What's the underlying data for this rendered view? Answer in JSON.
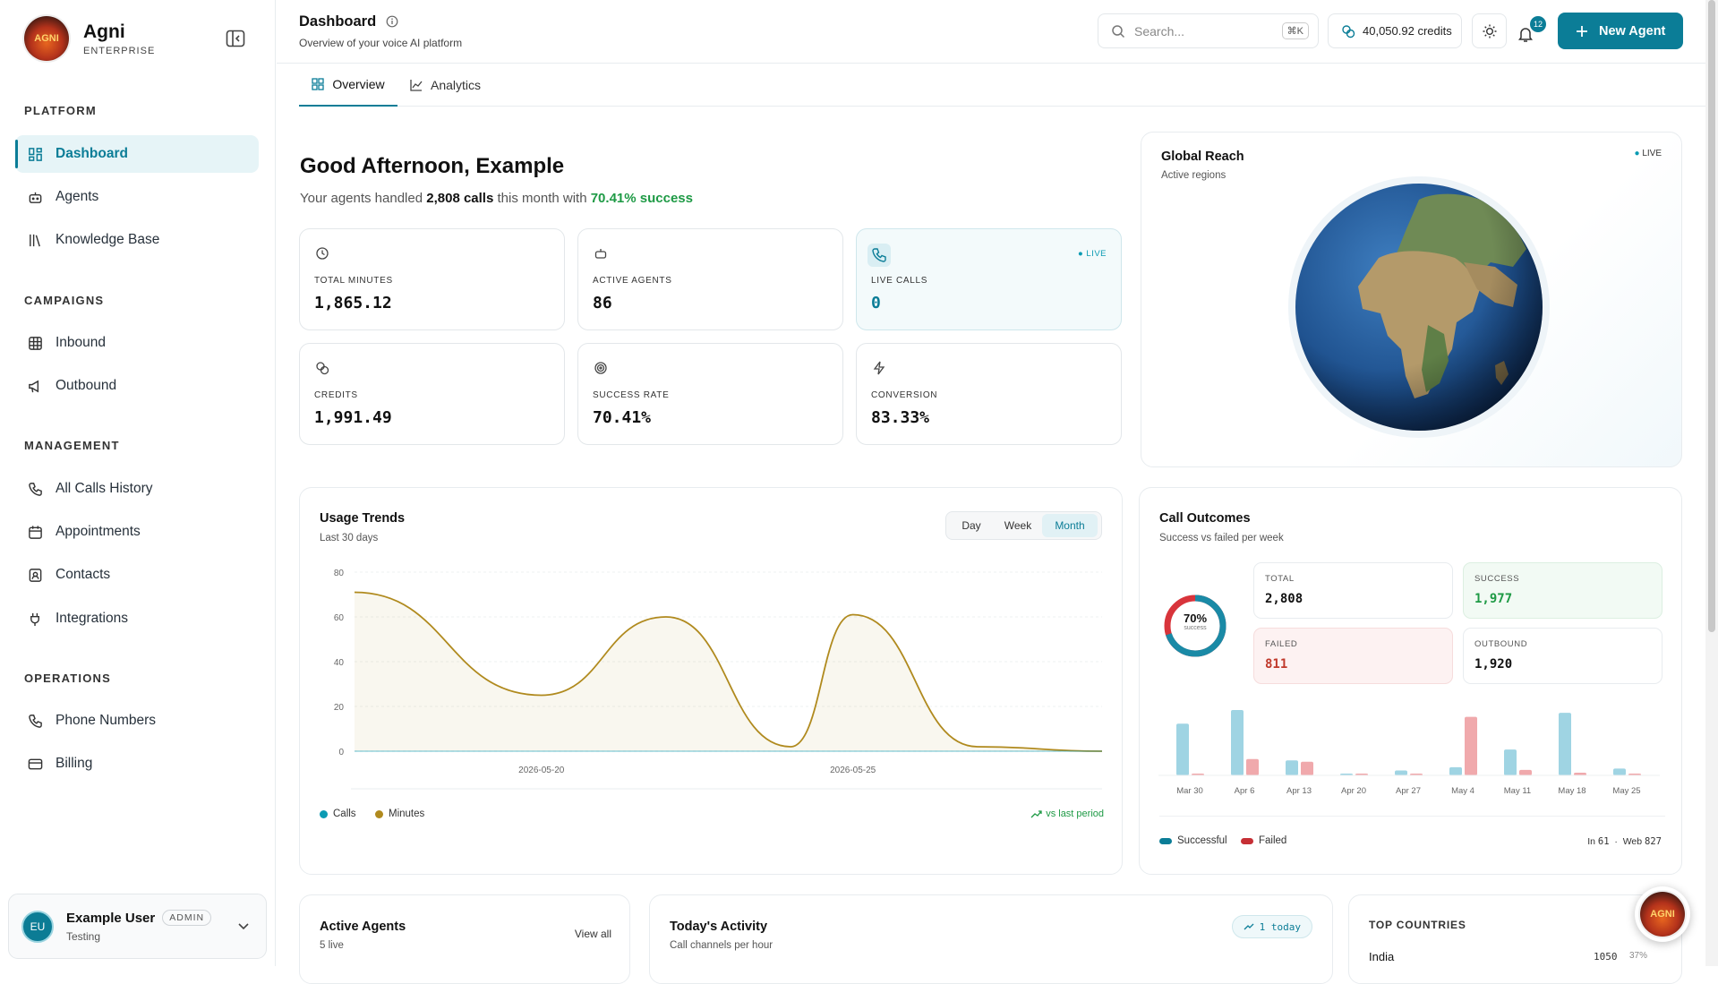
{
  "brand": {
    "name": "Agni",
    "tier": "ENTERPRISE",
    "logo_text": "AGNI"
  },
  "sidebar": {
    "sections": [
      {
        "title": "PLATFORM",
        "items": [
          {
            "label": "Dashboard",
            "icon": "grid-icon",
            "active": true
          },
          {
            "label": "Agents",
            "icon": "bot-icon"
          },
          {
            "label": "Knowledge Base",
            "icon": "library-icon"
          }
        ]
      },
      {
        "title": "CAMPAIGNS",
        "items": [
          {
            "label": "Inbound",
            "icon": "table-icon"
          },
          {
            "label": "Outbound",
            "icon": "megaphone-icon"
          }
        ]
      },
      {
        "title": "MANAGEMENT",
        "items": [
          {
            "label": "All Calls History",
            "icon": "phone-icon"
          },
          {
            "label": "Appointments",
            "icon": "calendar-icon"
          },
          {
            "label": "Contacts",
            "icon": "contact-icon"
          },
          {
            "label": "Integrations",
            "icon": "plug-icon"
          }
        ]
      },
      {
        "title": "OPERATIONS",
        "items": [
          {
            "label": "Phone Numbers",
            "icon": "phone-icon"
          },
          {
            "label": "Billing",
            "icon": "card-icon"
          }
        ]
      }
    ],
    "user": {
      "initials": "EU",
      "name": "Example User",
      "role": "ADMIN",
      "org": "Testing"
    }
  },
  "header": {
    "title": "Dashboard",
    "subtitle": "Overview of your voice AI platform",
    "search_placeholder": "Search...",
    "search_shortcut": "⌘K",
    "credits": "40,050.92 credits",
    "notifications": "12",
    "new_agent": "New Agent"
  },
  "tabs": [
    {
      "label": "Overview",
      "active": true
    },
    {
      "label": "Analytics"
    }
  ],
  "greeting": {
    "title": "Good Afternoon, Example",
    "pre": "Your agents handled",
    "calls": "2,808 calls",
    "mid": "this month with",
    "success": "70.41% success"
  },
  "stats": [
    {
      "label": "TOTAL MINUTES",
      "value": "1,865.12",
      "icon": "clock-icon"
    },
    {
      "label": "ACTIVE AGENTS",
      "value": "86",
      "icon": "bot-icon"
    },
    {
      "label": "LIVE CALLS",
      "value": "0",
      "icon": "phone-icon",
      "live": "LIVE"
    },
    {
      "label": "CREDITS",
      "value": "1,991.49",
      "icon": "coins-icon"
    },
    {
      "label": "SUCCESS RATE",
      "value": "70.41%",
      "icon": "target-icon"
    },
    {
      "label": "CONVERSION",
      "value": "83.33%",
      "icon": "zap-icon"
    }
  ],
  "global": {
    "title": "Global Reach",
    "subtitle": "Active regions",
    "live": "LIVE"
  },
  "usage": {
    "title": "Usage Trends",
    "subtitle": "Last 30 days",
    "ranges": [
      "Day",
      "Week",
      "Month"
    ],
    "selected": "Month",
    "legend": [
      "Calls",
      "Minutes"
    ],
    "trend": "vs last period"
  },
  "chart_data": {
    "type": "line",
    "title": "Usage Trends",
    "x": [
      "2026-05-17",
      "2026-05-20",
      "2026-05-22",
      "2026-05-24",
      "2026-05-25",
      "2026-05-27",
      "2026-05-29"
    ],
    "x_ticks": [
      "2026-05-20",
      "2026-05-25"
    ],
    "series": [
      {
        "name": "Minutes",
        "color": "#b08a1e",
        "values": [
          71,
          25,
          60,
          2,
          61,
          2,
          0
        ]
      },
      {
        "name": "Calls",
        "color": "#0b9bb3",
        "values": [
          0,
          0,
          0,
          0,
          0,
          0,
          0
        ]
      }
    ],
    "ylim": [
      0,
      80
    ],
    "y_ticks": [
      0,
      20,
      40,
      60,
      80
    ],
    "grid": true,
    "legend": "bottom-left"
  },
  "outcomes": {
    "title": "Call Outcomes",
    "subtitle": "Success vs failed per week",
    "donut_pct": "70%",
    "donut_label": "success",
    "donut_value": 0.7,
    "minis": [
      {
        "label": "TOTAL",
        "value": "2,808"
      },
      {
        "label": "SUCCESS",
        "value": "1,977"
      },
      {
        "label": "FAILED",
        "value": "811"
      },
      {
        "label": "OUTBOUND",
        "value": "1,920"
      }
    ],
    "legend": [
      "Successful",
      "Failed"
    ],
    "in_label": "In",
    "in_value": "61",
    "web_label": "Web",
    "web_value": "827"
  },
  "outcomes_bars": {
    "type": "bar",
    "categories": [
      "Mar 30",
      "Apr 6",
      "Apr 13",
      "Apr 20",
      "Apr 27",
      "May 4",
      "May 11",
      "May 18",
      "May 25"
    ],
    "series": [
      {
        "name": "Successful",
        "color": "#9fd4e3",
        "values": [
          190,
          240,
          55,
          5,
          18,
          30,
          95,
          230,
          25
        ]
      },
      {
        "name": "Failed",
        "color": "#f0a9ac",
        "values": [
          5,
          60,
          50,
          5,
          5,
          215,
          20,
          10,
          5
        ]
      }
    ]
  },
  "active_agents": {
    "title": "Active Agents",
    "subtitle": "5 live",
    "view_all": "View all"
  },
  "activity": {
    "title": "Today's Activity",
    "subtitle": "Call channels per hour",
    "badge": "1 today"
  },
  "countries": {
    "title": "TOP COUNTRIES",
    "rows": [
      {
        "name": "India",
        "count": "1050",
        "pct": "37%"
      }
    ]
  }
}
